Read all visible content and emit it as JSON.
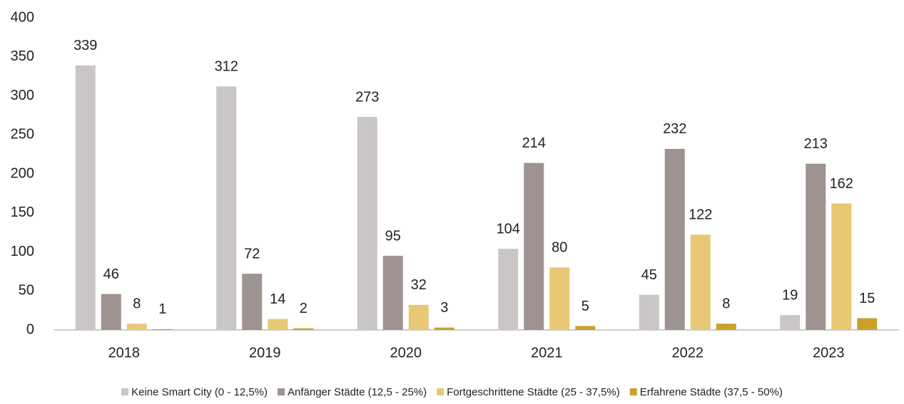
{
  "chart_data": {
    "type": "bar",
    "categories": [
      "2018",
      "2019",
      "2020",
      "2021",
      "2022",
      "2023"
    ],
    "series": [
      {
        "name": "Keine Smart City (0 - 12,5%)",
        "color": "#cac6c5",
        "values": [
          339,
          312,
          273,
          104,
          45,
          19
        ]
      },
      {
        "name": "Anfänger Städte (12,5 - 25%)",
        "color": "#9e9391",
        "values": [
          46,
          72,
          95,
          214,
          232,
          213
        ]
      },
      {
        "name": "Fortgeschrittene Städte (25 - 37,5%)",
        "color": "#e9c875",
        "values": [
          8,
          14,
          32,
          80,
          122,
          162
        ]
      },
      {
        "name": "Erfahrene Städte (37,5 - 50%)",
        "color": "#c9a227",
        "values": [
          1,
          2,
          3,
          5,
          8,
          15
        ]
      }
    ],
    "ylim": [
      0,
      400
    ],
    "yticks": [
      0,
      50,
      100,
      150,
      200,
      250,
      300,
      350,
      400
    ],
    "grid": false,
    "legend": "bottom"
  }
}
